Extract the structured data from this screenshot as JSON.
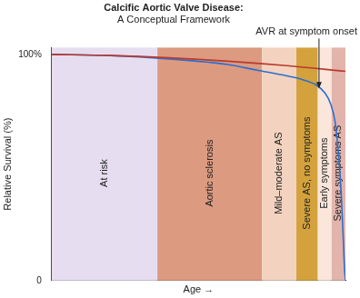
{
  "chart_data": {
    "type": "line",
    "title": "Calcific Aortic Valve Disease:",
    "subtitle": "A Conceptual Framework",
    "x_label": "Age →",
    "y_label": "Relative Survival (%)",
    "xlim": [
      0,
      100
    ],
    "ylim": [
      0,
      103
    ],
    "yticks": [
      0,
      {
        "value": 100,
        "label": "100%"
      }
    ],
    "tick_labels": "y",
    "grid": false,
    "series": [
      {
        "color": "#b83a2e",
        "x": [
          0,
          20,
          40,
          60,
          80,
          100
        ],
        "values": [
          100,
          99.5,
          98.5,
          97,
          95,
          92.5
        ]
      },
      {
        "color": "#2a6fd1",
        "x": [
          0,
          20,
          40,
          60,
          70,
          80,
          85,
          90,
          93,
          95,
          96.5,
          97.5,
          98.5,
          99.2,
          99.7,
          100
        ],
        "values": [
          100,
          99.5,
          98,
          95.5,
          93,
          90.5,
          89,
          86.5,
          83,
          78,
          70,
          58,
          40,
          20,
          5,
          0
        ]
      }
    ],
    "regions": [
      {
        "label": "At risk",
        "start": 0,
        "end": 36,
        "color": "#e6def0"
      },
      {
        "label": "Aortic sclerosis",
        "start": 36,
        "end": 71.6,
        "color": "#dc9a80"
      },
      {
        "label": "Mild–moderate AS",
        "start": 71.6,
        "end": 83.3,
        "color": "#f3d3bf"
      },
      {
        "label": "Severe AS, no symptoms",
        "start": 83.3,
        "end": 90.6,
        "color": "#d4a23c"
      },
      {
        "label": "Early symptoms",
        "start": 90.6,
        "end": 95.3,
        "color": "#fbe6dc"
      },
      {
        "label": "Severe symptoms AS",
        "start": 95.3,
        "end": 100,
        "color": "#e2b4ac"
      }
    ],
    "annotations": [
      {
        "text": "AVR at symptom onset",
        "x": 91,
        "y": 85
      }
    ]
  }
}
